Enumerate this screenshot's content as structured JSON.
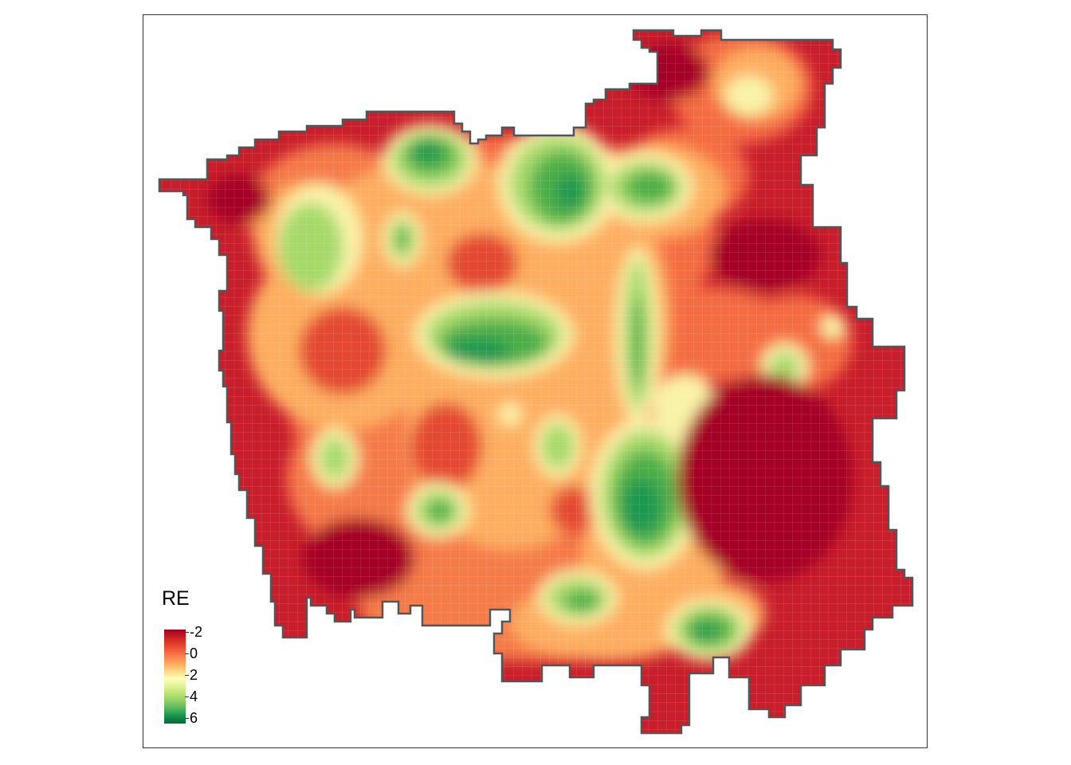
{
  "legend": {
    "title": "RE",
    "ticks": [
      "-2",
      "0",
      "2",
      "4",
      "6"
    ],
    "colors": [
      "#a50026",
      "#f46d43",
      "#ffffbf",
      "#66bd63",
      "#006837"
    ]
  },
  "chart_data": {
    "type": "heatmap",
    "variable": "RE",
    "scale_range": [
      -2,
      6
    ],
    "palette": "RdYlGn",
    "low_value_regions": [
      "north",
      "west",
      "southwest",
      "east",
      "southeast"
    ],
    "high_value_regions": [
      "central",
      "north-central",
      "south-central"
    ]
  }
}
